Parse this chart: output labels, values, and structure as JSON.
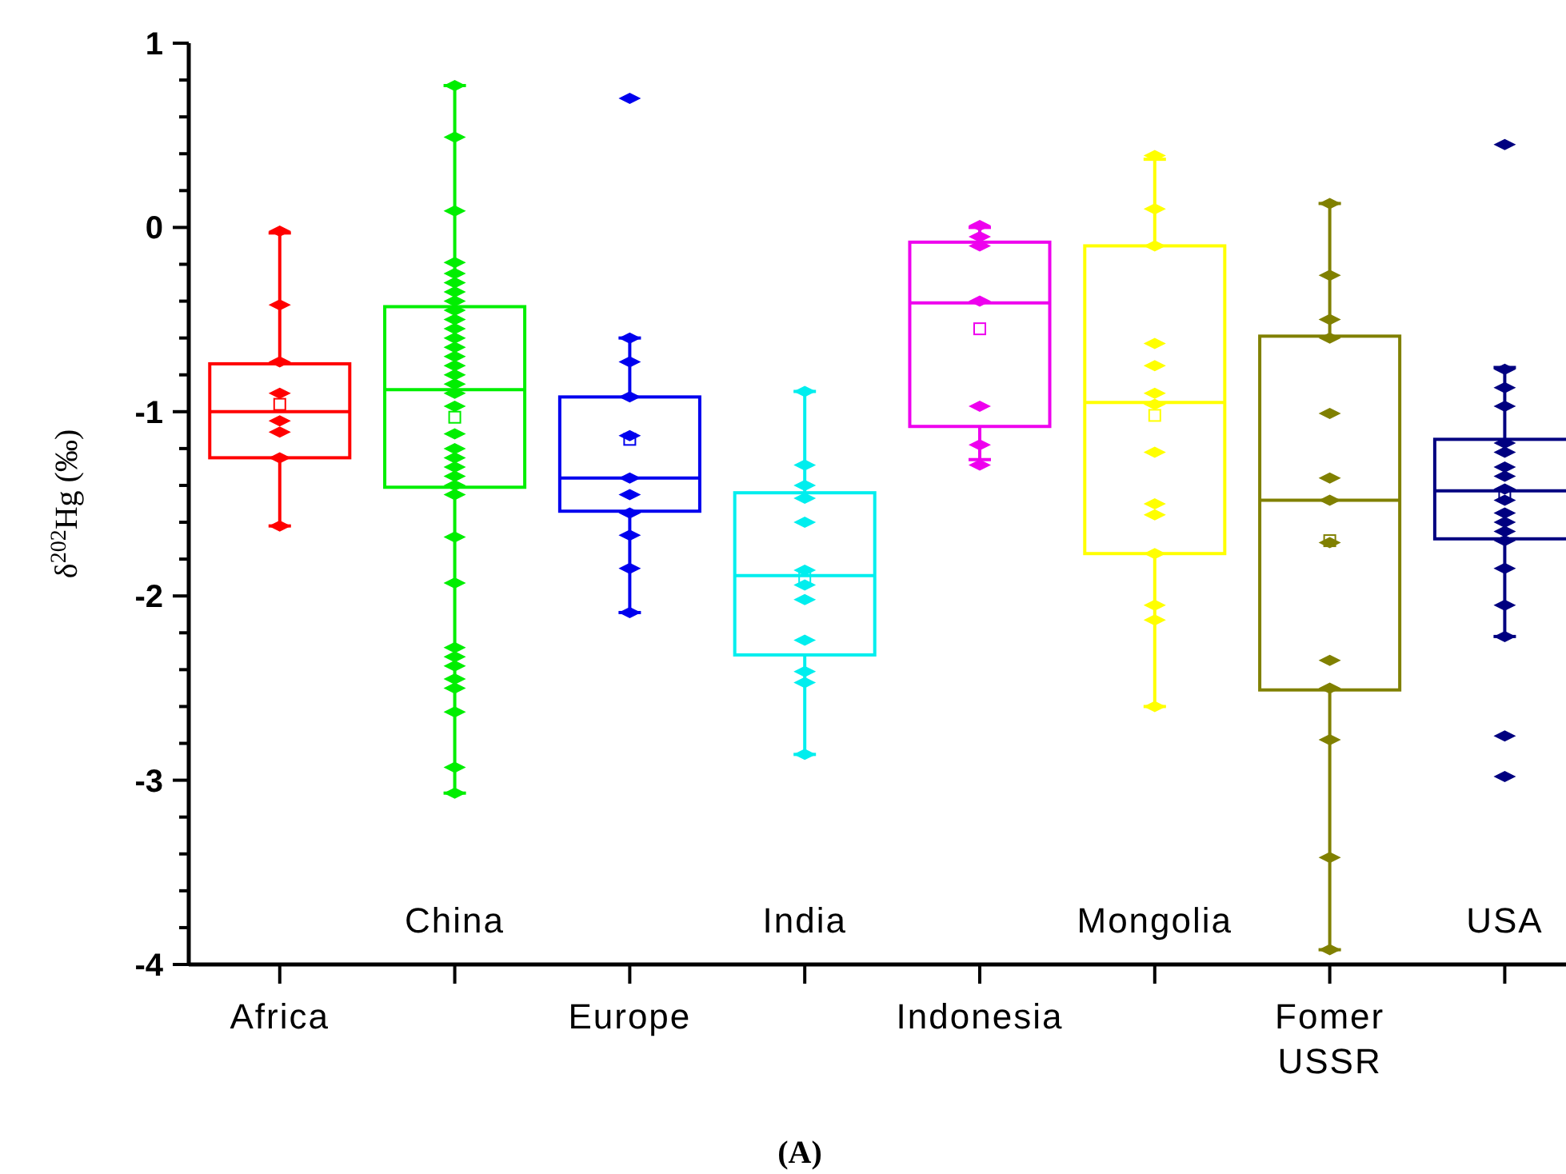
{
  "chart_data": {
    "type": "box",
    "ylabel": "δ$^{202}$Hg (‰)",
    "annotations": [
      "(A)"
    ],
    "categories": [
      "Africa",
      "China",
      "Europe",
      "India",
      "Indonesia",
      "Mongolia",
      "Fomer USSR",
      "USA"
    ],
    "colors": [
      "#ff0000",
      "#00ee00",
      "#0000ee",
      "#00eeee",
      "#ee00ee",
      "#ffff00",
      "#808000",
      "#000080"
    ],
    "boxes": [
      {
        "low": -1.62,
        "q1": -1.25,
        "median": -1.0,
        "q3": -0.74,
        "high": -0.03,
        "mean": -0.96
      },
      {
        "low": -3.07,
        "q1": -1.41,
        "median": -0.88,
        "q3": -0.43,
        "high": 0.77,
        "mean": -1.03
      },
      {
        "low": -2.09,
        "q1": -1.54,
        "median": -1.36,
        "q3": -0.92,
        "high": -0.6,
        "mean": -1.15
      },
      {
        "low": -2.86,
        "q1": -2.32,
        "median": -1.89,
        "q3": -1.44,
        "high": -0.89,
        "mean": -1.9
      },
      {
        "low": -1.26,
        "q1": -1.08,
        "median": -0.41,
        "q3": -0.08,
        "high": 0.0,
        "mean": -0.55
      },
      {
        "low": -2.6,
        "q1": -1.77,
        "median": -0.95,
        "q3": -0.1,
        "high": 0.37,
        "mean": -1.02
      },
      {
        "low": -3.92,
        "q1": -2.51,
        "median": -1.48,
        "q3": -0.59,
        "high": 0.13,
        "mean": -1.7
      },
      {
        "low": -2.22,
        "q1": -1.69,
        "median": -1.43,
        "q3": -1.15,
        "high": -0.76,
        "mean": -1.45
      }
    ],
    "series": [
      {
        "type": "scatter",
        "color": "#ff0000",
        "x": [
          "Africa",
          "Africa",
          "Africa",
          "Africa",
          "Africa",
          "Africa",
          "Africa",
          "Africa"
        ],
        "values": [
          -0.02,
          -0.42,
          -0.73,
          -0.9,
          -1.05,
          -1.11,
          -1.25,
          -1.62
        ]
      },
      {
        "type": "scatter",
        "color": "#00ee00",
        "x": [
          "China",
          "China",
          "China",
          "China",
          "China",
          "China",
          "China",
          "China",
          "China",
          "China",
          "China",
          "China",
          "China",
          "China",
          "China",
          "China",
          "China",
          "China",
          "China",
          "China",
          "China",
          "China",
          "China",
          "China",
          "China",
          "China",
          "China",
          "China",
          "China",
          "China",
          "China",
          "China",
          "China",
          "China",
          "China",
          "China"
        ],
        "values": [
          0.77,
          0.49,
          0.09,
          -0.19,
          -0.25,
          -0.3,
          -0.35,
          -0.4,
          -0.45,
          -0.5,
          -0.55,
          -0.6,
          -0.65,
          -0.7,
          -0.75,
          -0.8,
          -0.85,
          -0.9,
          -0.97,
          -1.12,
          -1.2,
          -1.25,
          -1.3,
          -1.35,
          -1.4,
          -1.45,
          -1.68,
          -1.93,
          -2.28,
          -2.33,
          -2.38,
          -2.45,
          -2.5,
          -2.63,
          -2.93,
          -3.07
        ]
      },
      {
        "type": "scatter",
        "color": "#0000ee",
        "x": [
          "Europe",
          "Europe",
          "Europe",
          "Europe",
          "Europe",
          "Europe",
          "Europe",
          "Europe",
          "Europe",
          "Europe",
          "Europe"
        ],
        "values": [
          0.7,
          -0.6,
          -0.73,
          -0.92,
          -1.13,
          -1.36,
          -1.45,
          -1.55,
          -1.67,
          -1.85,
          -2.09
        ]
      },
      {
        "type": "scatter",
        "color": "#00eeee",
        "x": [
          "India",
          "India",
          "India",
          "India",
          "India",
          "India",
          "India",
          "India",
          "India",
          "India",
          "India",
          "India"
        ],
        "values": [
          -0.89,
          -1.29,
          -1.4,
          -1.47,
          -1.6,
          -1.86,
          -1.94,
          -2.02,
          -2.24,
          -2.41,
          -2.47,
          -2.86
        ]
      },
      {
        "type": "scatter",
        "color": "#ee00ee",
        "x": [
          "Indonesia",
          "Indonesia",
          "Indonesia",
          "Indonesia",
          "Indonesia",
          "Indonesia",
          "Indonesia"
        ],
        "values": [
          0.01,
          -0.05,
          -0.1,
          -0.4,
          -0.97,
          -1.18,
          -1.29
        ]
      },
      {
        "type": "scatter",
        "color": "#ffff00",
        "x": [
          "Mongolia",
          "Mongolia",
          "Mongolia",
          "Mongolia",
          "Mongolia",
          "Mongolia",
          "Mongolia",
          "Mongolia",
          "Mongolia",
          "Mongolia",
          "Mongolia",
          "Mongolia",
          "Mongolia",
          "Mongolia"
        ],
        "values": [
          0.39,
          0.1,
          -0.1,
          -0.63,
          -0.75,
          -0.9,
          -0.96,
          -1.22,
          -1.5,
          -1.56,
          -1.77,
          -2.05,
          -2.13,
          -2.6
        ]
      },
      {
        "type": "scatter",
        "color": "#808000",
        "x": [
          "Fomer USSR",
          "Fomer USSR",
          "Fomer USSR",
          "Fomer USSR",
          "Fomer USSR",
          "Fomer USSR",
          "Fomer USSR",
          "Fomer USSR",
          "Fomer USSR",
          "Fomer USSR",
          "Fomer USSR",
          "Fomer USSR",
          "Fomer USSR"
        ],
        "values": [
          0.13,
          -0.26,
          -0.5,
          -0.6,
          -1.01,
          -1.36,
          -1.48,
          -1.71,
          -2.35,
          -2.5,
          -2.78,
          -3.42,
          -3.92
        ]
      },
      {
        "type": "scatter",
        "color": "#000080",
        "x": [
          "USA",
          "USA",
          "USA",
          "USA",
          "USA",
          "USA",
          "USA",
          "USA",
          "USA",
          "USA",
          "USA",
          "USA",
          "USA",
          "USA",
          "USA",
          "USA",
          "USA",
          "USA",
          "USA"
        ],
        "values": [
          0.45,
          -0.77,
          -0.87,
          -0.97,
          -1.17,
          -1.22,
          -1.3,
          -1.35,
          -1.42,
          -1.48,
          -1.55,
          -1.6,
          -1.65,
          -1.7,
          -1.85,
          -2.05,
          -2.22,
          -2.76,
          -2.98
        ]
      }
    ],
    "marker": "diamond",
    "ylim": [
      -4,
      1
    ],
    "yticks": [
      -4,
      {
        "value": -3.8,
        "label": null
      },
      {
        "value": -3.6,
        "label": null
      },
      {
        "value": -3.4,
        "label": null
      },
      {
        "value": -3.2,
        "label": null
      },
      -3,
      {
        "value": -2.8,
        "label": null
      },
      {
        "value": -2.6,
        "label": null
      },
      {
        "value": -2.4,
        "label": null
      },
      {
        "value": -2.2,
        "label": null
      },
      -2,
      {
        "value": -1.8,
        "label": null
      },
      {
        "value": -1.6,
        "label": null
      },
      {
        "value": -1.4,
        "label": null
      },
      {
        "value": -1.2,
        "label": null
      },
      -1,
      {
        "value": -0.8,
        "label": null
      },
      {
        "value": -0.6,
        "label": null
      },
      {
        "value": -0.4,
        "label": null
      },
      {
        "value": -0.2,
        "label": null
      },
      0,
      {
        "value": 0.2,
        "label": null
      },
      {
        "value": 0.4,
        "label": null
      },
      {
        "value": 0.6,
        "label": null
      },
      {
        "value": 0.8,
        "label": null
      },
      1
    ],
    "grid": false
  }
}
